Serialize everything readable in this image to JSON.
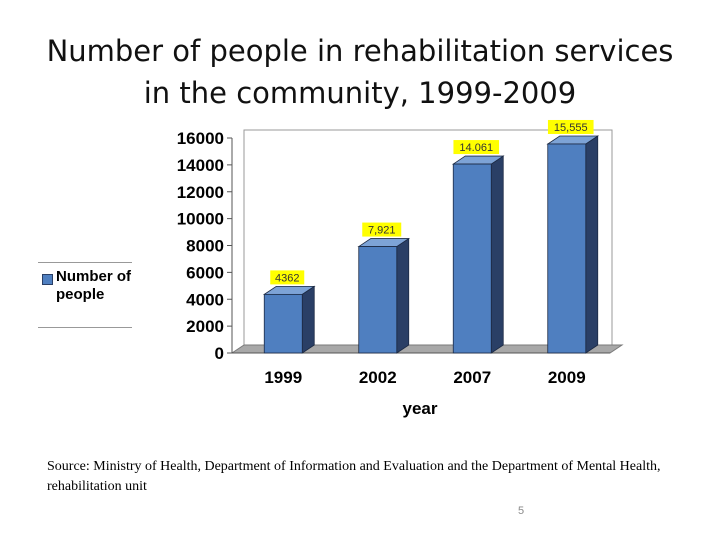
{
  "slide": {
    "title_line1": "Number of people in rehabilitation services",
    "title_line2": "in the community, 1999-2009",
    "source": "Source: Ministry of Health, Department of Information and Evaluation and the Department of Mental Health, rehabilitation unit",
    "page_number": "5"
  },
  "chart_data": {
    "type": "bar",
    "categories": [
      "1999",
      "2002",
      "2007",
      "2009"
    ],
    "series": [
      {
        "name": "Number of people",
        "values": [
          4362,
          7921,
          14061,
          15555
        ],
        "labels": [
          "4362",
          "7,921",
          "14.061",
          "15,555"
        ]
      }
    ],
    "xlabel": "year",
    "ylabel": "",
    "ylim": [
      0,
      16000
    ],
    "yticks": [
      "0",
      "2000",
      "4000",
      "6000",
      "8000",
      "10000",
      "12000",
      "14000",
      "16000"
    ],
    "legend": "left",
    "grid": false,
    "colors": {
      "bar_front": "#4f7fc0",
      "bar_side": "#2a3f66",
      "bar_top": "#7da3d6",
      "label_bg": "#ffff00",
      "floor": "#a8a8a8"
    }
  }
}
